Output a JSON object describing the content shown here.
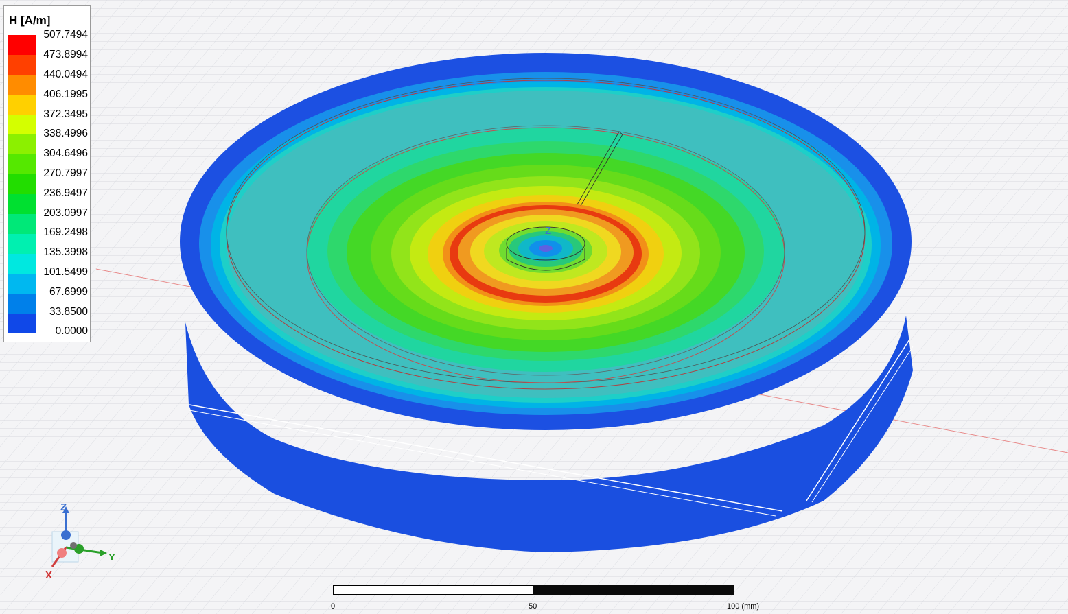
{
  "legend": {
    "title": "H [A/m]",
    "ticks": [
      "507.7494",
      "473.8994",
      "440.0494",
      "406.1995",
      "372.3495",
      "338.4996",
      "304.6496",
      "270.7997",
      "236.9497",
      "203.0997",
      "169.2498",
      "135.3998",
      "101.5499",
      "67.6999",
      "33.8500",
      "0.0000"
    ],
    "colors": [
      "#ff0000",
      "#ff4000",
      "#ff8c00",
      "#ffd000",
      "#d4ff00",
      "#8cf000",
      "#55e800",
      "#22dd00",
      "#00e030",
      "#00e878",
      "#00f0b0",
      "#00e8e0",
      "#00b8f0",
      "#0080ea",
      "#1048e8",
      "#0000ee"
    ]
  },
  "axes": {
    "z_label": "Z",
    "y_label": "Y",
    "x_label": "X",
    "origin_label": "Z"
  },
  "scale_bar": {
    "labels": [
      "0",
      "50",
      "100 (mm)"
    ]
  }
}
